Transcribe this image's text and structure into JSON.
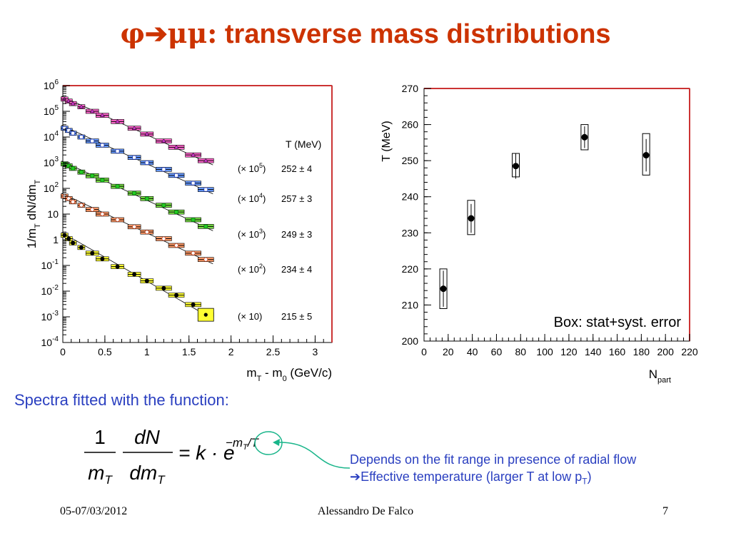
{
  "slide": {
    "title_symbol": "φ➔μμ:",
    "title_text": "transverse mass distributions",
    "fit_caption": "Spectra fitted with the function:",
    "note_line1": "Depends on the fit range in presence of radial flow",
    "note_line2_arrow": "➔",
    "note_line2": "Effective temperature (larger T at low p",
    "note_line2_sub": "T",
    "note_line2_end": ")",
    "footer_date": "05-07/03/2012",
    "footer_author": "Alessandro De Falco",
    "footer_page": "7",
    "colors": {
      "title": "#cc3300",
      "text_blue": "#2a3fc0",
      "callout": "#19b58a"
    }
  },
  "formula": {
    "num1": "1",
    "den1_main": "m",
    "den1_sub": "T",
    "num2": "dN",
    "den2_main": "dm",
    "den2_sub": "T",
    "rhs": "= k · e",
    "exp": "−m",
    "exp_sub": "T",
    "exp_end": "/T"
  },
  "chart_data": [
    {
      "type": "scatter",
      "title": "",
      "xlabel": "m_T - m_0 (GeV/c)",
      "ylabel": "1/m_T dN/dm_T",
      "xlim": [
        0,
        3.2
      ],
      "ylim": [
        0.0001,
        1000000
      ],
      "log_y": true,
      "x_ticks": [
        "0",
        "0.5",
        "1",
        "1.5",
        "2",
        "2.5",
        "3"
      ],
      "y_tick_labels": [
        {
          "base": "10",
          "exp": "-4"
        },
        {
          "base": "10",
          "exp": "-3"
        },
        {
          "base": "10",
          "exp": "-2"
        },
        {
          "base": "10",
          "exp": "-1"
        },
        {
          "base": "1",
          "exp": ""
        },
        {
          "base": "10",
          "exp": ""
        },
        {
          "base": "10",
          "exp": "2"
        },
        {
          "base": "10",
          "exp": "3"
        },
        {
          "base": "10",
          "exp": "4"
        },
        {
          "base": "10",
          "exp": "5"
        },
        {
          "base": "10",
          "exp": "6"
        }
      ],
      "legend_header": "T (MeV)",
      "x": [
        0.02,
        0.07,
        0.12,
        0.22,
        0.35,
        0.47,
        0.65,
        0.85,
        1.0,
        1.2,
        1.35,
        1.55,
        1.7
      ],
      "series": [
        {
          "name": "(× 10^5)",
          "scale_text": "(× 10",
          "scale_exp": "5",
          "T_text": "252 ± 4",
          "fill": "#cc33cc",
          "marker": "triangle",
          "values": [
            300000,
            250000,
            200000,
            150000,
            100000,
            70000,
            40000,
            22000,
            13000,
            7000,
            4000,
            2000,
            1200
          ]
        },
        {
          "name": "(× 10^4)",
          "scale_text": "(× 10",
          "scale_exp": "4",
          "T_text": "257 ± 3",
          "fill": "#ffffff",
          "marker": "square",
          "values": [
            22000,
            18000,
            14000,
            10000,
            7000,
            4800,
            2800,
            1600,
            1000,
            550,
            320,
            160,
            90
          ]
        },
        {
          "name": "(× 10^3)",
          "scale_text": "(× 10",
          "scale_exp": "3",
          "T_text": "249 ± 3",
          "fill": "#22cc22",
          "marker": "square",
          "values": [
            900,
            750,
            600,
            430,
            310,
            210,
            120,
            65,
            40,
            22,
            12,
            6,
            3.3
          ]
        },
        {
          "name": "(× 10^2)",
          "scale_text": "(× 10",
          "scale_exp": "2",
          "T_text": "234 ± 4",
          "fill": "#ffffff",
          "marker": "circle",
          "values": [
            50,
            40,
            30,
            22,
            15,
            10,
            6,
            3.2,
            2,
            1.1,
            0.6,
            0.3,
            0.17
          ]
        },
        {
          "name": "(× 10)",
          "scale_text": "(× 10)",
          "scale_exp": "",
          "T_text": "215 ± 5",
          "fill": "#000000",
          "marker": "circle",
          "values": [
            1.5,
            1.1,
            0.75,
            0.5,
            0.3,
            0.18,
            0.09,
            0.045,
            0.025,
            0.013,
            0.007,
            0.003,
            0.0012
          ]
        }
      ]
    },
    {
      "type": "scatter",
      "title": "",
      "xlabel": "N_part",
      "ylabel": "T (MeV)",
      "xlim": [
        0,
        220
      ],
      "ylim": [
        200,
        270
      ],
      "x_ticks": [
        "0",
        "20",
        "40",
        "60",
        "80",
        "100",
        "120",
        "140",
        "160",
        "180",
        "200",
        "220"
      ],
      "y_ticks": [
        "200",
        "210",
        "220",
        "230",
        "240",
        "250",
        "260",
        "270"
      ],
      "annotation": "Box: stat+syst. error",
      "points": [
        {
          "x": 16,
          "y": 214.5,
          "stat": 5,
          "box_lo": 209,
          "box_hi": 220
        },
        {
          "x": 39,
          "y": 234,
          "stat": 4,
          "box_lo": 229.5,
          "box_hi": 239
        },
        {
          "x": 76,
          "y": 248.5,
          "stat": 3.5,
          "box_lo": 245.5,
          "box_hi": 252
        },
        {
          "x": 133,
          "y": 256.5,
          "stat": 3,
          "box_lo": 253,
          "box_hi": 260
        },
        {
          "x": 184,
          "y": 251.5,
          "stat": 4.5,
          "box_lo": 246,
          "box_hi": 257.5
        }
      ]
    }
  ]
}
